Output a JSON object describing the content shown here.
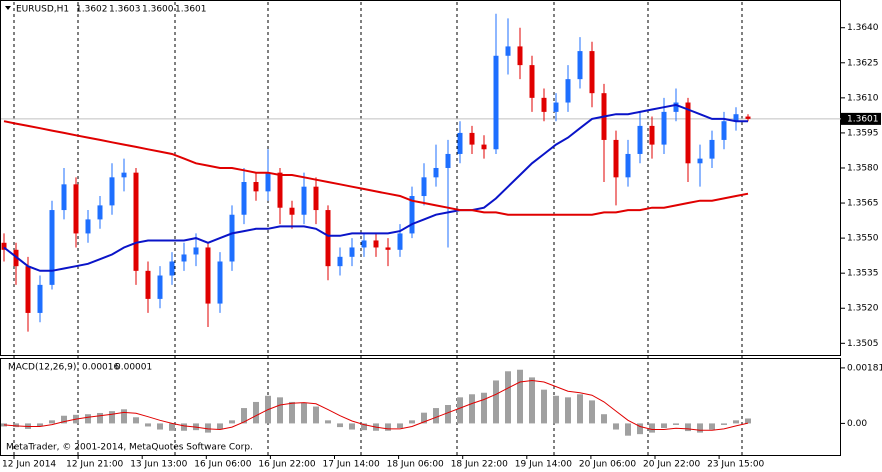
{
  "chart_data": {
    "type": "candlestick",
    "title": "EURUSD,H1",
    "ohlc_text": [
      "1.3602",
      "1.3603",
      "1.3600",
      "1.3601"
    ],
    "copyright": "MetaTrader, © 2001-2014, MetaQuotes Software Corp.",
    "ylim": [
      1.35,
      1.3651
    ],
    "yticks": [
      {
        "value": 1.364,
        "label": "1.3640"
      },
      1.3625,
      {
        "value": 1.361,
        "label": "1.3610"
      },
      1.3595,
      {
        "value": 1.358,
        "label": "1.3580"
      },
      1.3565,
      {
        "value": 1.355,
        "label": "1.3550"
      },
      1.3535,
      {
        "value": 1.352,
        "label": "1.3520"
      },
      1.3505
    ],
    "bid": 1.3601,
    "up_color": "#1e6fff",
    "down_color": "#e00000",
    "x_labels": [
      "12 Jun 2014",
      "12 Jun 21:00",
      "13 Jun 13:00",
      "16 Jun 06:00",
      "16 Jun 22:00",
      "17 Jun 14:00",
      "18 Jun 06:00",
      "18 Jun 22:00",
      "19 Jun 14:00",
      "20 Jun 06:00",
      "20 Jun 22:00",
      "23 Jun 15:00"
    ],
    "candles": {
      "open": [
        1.3548,
        1.3545,
        1.3538,
        1.3518,
        1.353,
        1.3562,
        1.3573,
        1.3552,
        1.3558,
        1.3564,
        1.3576,
        1.3578,
        1.3536,
        1.3524,
        1.3534,
        1.354,
        1.3543,
        1.3546,
        1.3522,
        1.354,
        1.356,
        1.3574,
        1.357,
        1.3578,
        1.3563,
        1.356,
        1.3572,
        1.3562,
        1.3538,
        1.3542,
        1.3546,
        1.3549,
        1.3546,
        1.3545,
        1.3552,
        1.3568,
        1.3576,
        1.358,
        1.3586,
        1.3595,
        1.359,
        1.3588,
        1.3628,
        1.3632,
        1.3624,
        1.361,
        1.3604,
        1.3608,
        1.3618,
        1.363,
        1.3612,
        1.3592,
        1.3576,
        1.3586,
        1.3598,
        1.359,
        1.3604,
        1.3608,
        1.3582,
        1.3584,
        1.3592,
        1.36,
        1.3602
      ],
      "high": [
        1.3552,
        1.3548,
        1.3542,
        1.3534,
        1.3566,
        1.358,
        1.3576,
        1.3562,
        1.3568,
        1.3582,
        1.3584,
        1.358,
        1.354,
        1.3538,
        1.3544,
        1.3548,
        1.3552,
        1.3548,
        1.3544,
        1.3564,
        1.358,
        1.3578,
        1.3588,
        1.358,
        1.3566,
        1.3578,
        1.3576,
        1.3564,
        1.3546,
        1.355,
        1.3552,
        1.3552,
        1.355,
        1.3556,
        1.3572,
        1.3582,
        1.359,
        1.3592,
        1.36,
        1.3598,
        1.3594,
        1.3646,
        1.3644,
        1.364,
        1.3628,
        1.3614,
        1.3612,
        1.3624,
        1.3636,
        1.3634,
        1.3616,
        1.3596,
        1.3592,
        1.3604,
        1.3602,
        1.361,
        1.3614,
        1.361,
        1.359,
        1.3596,
        1.3604,
        1.3606,
        1.3603
      ],
      "low": [
        1.354,
        1.353,
        1.351,
        1.3514,
        1.3528,
        1.3558,
        1.3546,
        1.3548,
        1.3554,
        1.356,
        1.357,
        1.353,
        1.3518,
        1.352,
        1.353,
        1.3536,
        1.3538,
        1.3512,
        1.3518,
        1.3536,
        1.3556,
        1.3566,
        1.3566,
        1.3556,
        1.3554,
        1.3556,
        1.3556,
        1.3532,
        1.3534,
        1.3538,
        1.3542,
        1.3542,
        1.3538,
        1.3542,
        1.355,
        1.3564,
        1.3572,
        1.3546,
        1.3582,
        1.3586,
        1.3584,
        1.3586,
        1.362,
        1.3618,
        1.3604,
        1.36,
        1.36,
        1.3604,
        1.3614,
        1.3606,
        1.3574,
        1.3564,
        1.3572,
        1.3582,
        1.3584,
        1.3586,
        1.36,
        1.3574,
        1.3572,
        1.358,
        1.3588,
        1.3596,
        1.36
      ],
      "close": [
        1.3545,
        1.3538,
        1.3518,
        1.353,
        1.3562,
        1.3573,
        1.3552,
        1.3558,
        1.3564,
        1.3576,
        1.3578,
        1.3536,
        1.3524,
        1.3534,
        1.354,
        1.3543,
        1.3546,
        1.3522,
        1.354,
        1.356,
        1.3574,
        1.357,
        1.3578,
        1.3563,
        1.356,
        1.3572,
        1.3562,
        1.3538,
        1.3542,
        1.3546,
        1.3549,
        1.3546,
        1.3545,
        1.3552,
        1.3568,
        1.3576,
        1.358,
        1.3586,
        1.3595,
        1.359,
        1.3588,
        1.3628,
        1.3632,
        1.3624,
        1.361,
        1.3604,
        1.3608,
        1.3618,
        1.363,
        1.3612,
        1.3592,
        1.3576,
        1.3586,
        1.3598,
        1.359,
        1.3604,
        1.3608,
        1.3582,
        1.3584,
        1.3592,
        1.36,
        1.3603,
        1.3601
      ]
    },
    "series": [
      {
        "color": "#0a14c8",
        "values": [
          1.3546,
          1.3542,
          1.3538,
          1.3536,
          1.3536,
          1.3537,
          1.3538,
          1.3539,
          1.3541,
          1.3543,
          1.3546,
          1.3548,
          1.3549,
          1.3549,
          1.3549,
          1.3549,
          1.355,
          1.3548,
          1.355,
          1.3552,
          1.3553,
          1.3554,
          1.3554,
          1.3555,
          1.3555,
          1.3555,
          1.3554,
          1.3551,
          1.3551,
          1.3552,
          1.3552,
          1.3552,
          1.3552,
          1.3553,
          1.3556,
          1.3558,
          1.356,
          1.3561,
          1.3562,
          1.3562,
          1.3563,
          1.3567,
          1.3572,
          1.3577,
          1.3582,
          1.3586,
          1.359,
          1.3593,
          1.3597,
          1.3601,
          1.3602,
          1.3603,
          1.3603,
          1.3604,
          1.3605,
          1.3606,
          1.3607,
          1.3605,
          1.3603,
          1.3601,
          1.3601,
          1.36,
          1.36
        ]
      },
      {
        "color": "#e00000",
        "values": [
          1.36,
          1.3599,
          1.3598,
          1.3597,
          1.3596,
          1.3595,
          1.3594,
          1.3593,
          1.3592,
          1.3591,
          1.359,
          1.3589,
          1.3588,
          1.3587,
          1.3586,
          1.3584,
          1.3582,
          1.3581,
          1.358,
          1.358,
          1.3579,
          1.3578,
          1.3578,
          1.3577,
          1.3577,
          1.3576,
          1.3575,
          1.3574,
          1.3573,
          1.3572,
          1.3571,
          1.357,
          1.3569,
          1.3568,
          1.3566,
          1.3565,
          1.3564,
          1.3563,
          1.3562,
          1.3562,
          1.3561,
          1.3561,
          1.356,
          1.356,
          1.356,
          1.356,
          1.356,
          1.356,
          1.356,
          1.356,
          1.3561,
          1.3561,
          1.3562,
          1.3562,
          1.3563,
          1.3563,
          1.3564,
          1.3565,
          1.3566,
          1.3566,
          1.3567,
          1.3568,
          1.3569
        ]
      }
    ],
    "macd": {
      "label": "MACD(12,26,9)",
      "ylim": [
        -0.00103,
        0.0021
      ],
      "yticks": [
        0.00181,
        {
          "value": 0,
          "label": "0.00"
        }
      ],
      "hist_color": "#a0a0a0",
      "signal_color": "#e00000",
      "histogram": [
        -0.0001,
        -0.00012,
        -0.00018,
        -0.0001,
        0.0001,
        0.00025,
        0.00028,
        0.0003,
        0.00034,
        0.0004,
        0.00046,
        0.0002,
        -0.0001,
        -0.0002,
        -0.00024,
        -0.00024,
        -0.00022,
        -0.0003,
        -0.0002,
        0.0001,
        0.0005,
        0.0007,
        0.0009,
        0.00085,
        0.0007,
        0.00068,
        0.00055,
        0.0001,
        -0.00012,
        -0.0002,
        -0.00022,
        -0.00024,
        -0.00024,
        -0.00015,
        0.0001,
        0.00035,
        0.0005,
        0.0006,
        0.00085,
        0.00095,
        0.001,
        0.0014,
        0.0017,
        0.00175,
        0.0015,
        0.0011,
        0.0009,
        0.00085,
        0.00095,
        0.00075,
        0.0003,
        -0.0002,
        -0.0004,
        -0.00035,
        -0.0003,
        -0.00015,
        -5e-05,
        -0.00025,
        -0.0003,
        -0.0002,
        -5e-05,
        0.0001,
        0.00016
      ],
      "signal": [
        -5e-05,
        -8e-05,
        -0.0001,
        -0.0001,
        -4e-05,
        6e-05,
        0.00014,
        0.0002,
        0.00025,
        0.0003,
        0.00036,
        0.00033,
        0.00022,
        0.0001,
        0,
        -8e-05,
        -0.00012,
        -0.00018,
        -0.0002,
        -0.00012,
        5e-05,
        0.00025,
        0.00045,
        0.0006,
        0.00066,
        0.00068,
        0.00064,
        0.00045,
        0.00025,
        8e-05,
        -4e-05,
        -0.00012,
        -0.00018,
        -0.00018,
        -0.0001,
        5e-05,
        0.0002,
        0.00035,
        0.0005,
        0.00065,
        0.00078,
        0.00095,
        0.00115,
        0.00135,
        0.0014,
        0.00135,
        0.0012,
        0.00105,
        0.001,
        0.00092,
        0.0007,
        0.0004,
        0.0001,
        -0.0001,
        -0.0002,
        -0.0002,
        -0.00016,
        -0.00018,
        -0.00022,
        -0.00022,
        -0.00018,
        -8e-05,
        1e-05
      ]
    }
  }
}
